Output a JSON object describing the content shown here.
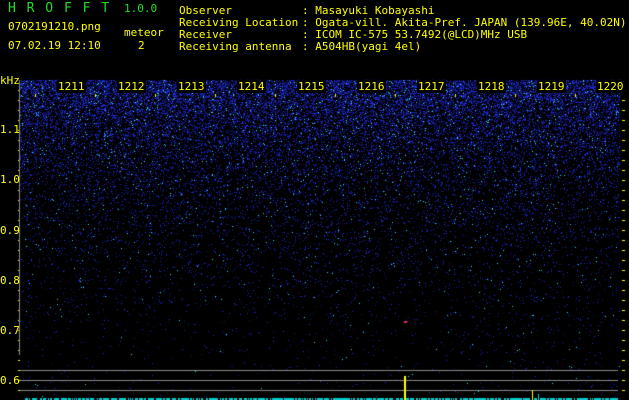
{
  "app": {
    "name": "H R O F F T",
    "version": "1.0.0"
  },
  "file": {
    "name": "0702191210.png",
    "datetime": "07.02.19 12:10"
  },
  "meteor": {
    "label": "meteor",
    "count": "2"
  },
  "info": [
    {
      "label": "Observer",
      "value": ": Masayuki Kobayashi"
    },
    {
      "label": "Receiving Location",
      "value": ": Ogata-vill. Akita-Pref. JAPAN (139.96E, 40.02N)"
    },
    {
      "label": "Receiver",
      "value": ": ICOM IC-575 53.7492(@LCD)MHz USB"
    },
    {
      "label": "Receiving antenna",
      "value": ": A504HB(yagi 4el)"
    }
  ],
  "spectrogram": {
    "y_unit": "kHz",
    "y_ticks": [
      "1.1",
      "1.0",
      "0.9",
      "0.8",
      "0.7",
      "0.6"
    ],
    "x_ticks": [
      "1211",
      "1212",
      "1213",
      "1214",
      "1215",
      "1216",
      "1217",
      "1218",
      "1219",
      "1220"
    ],
    "colors": {
      "noise": "#2233ff",
      "label": "#ffff00",
      "logo": "#22dd22",
      "meteor_echo": "#ff2266",
      "spike": "#ffff00",
      "baseline": "#00cccc"
    }
  }
}
